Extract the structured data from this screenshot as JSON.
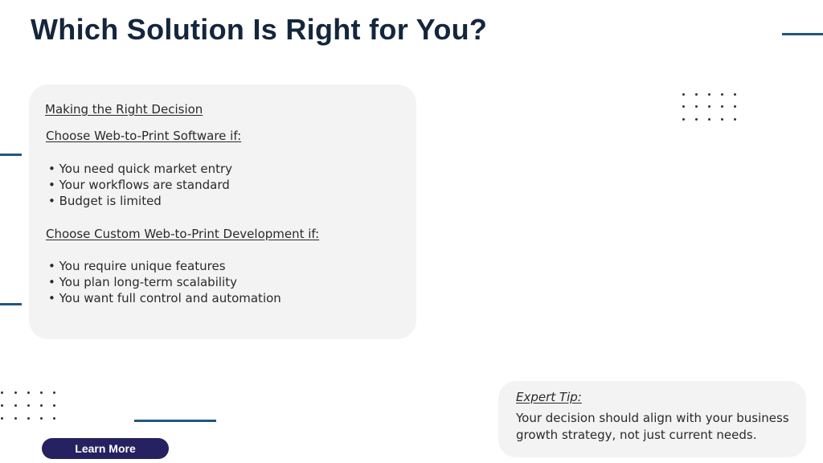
{
  "title": "Which Solution Is Right for You?",
  "card": {
    "heading": "Making the Right Decision",
    "software": {
      "label": "Choose Web-to-Print Software if:",
      "items": [
        "• You need quick market entry",
        "• Your workflows are standard",
        "• Budget is limited"
      ]
    },
    "custom": {
      "label": "Choose Custom Web-to-Print Development if:",
      "items": [
        "• You require unique features",
        "• You plan long-term scalability",
        "• You want full control and automation"
      ]
    }
  },
  "tip": {
    "label": "Expert Tip:",
    "line1": "Your decision should align with your business",
    "line2": "growth strategy, not just current needs."
  },
  "button": {
    "label": "Learn More"
  },
  "colors": {
    "title": "#14263d",
    "accent_line": "#22577e",
    "button": "#262160",
    "card": "#f3f3f3"
  }
}
